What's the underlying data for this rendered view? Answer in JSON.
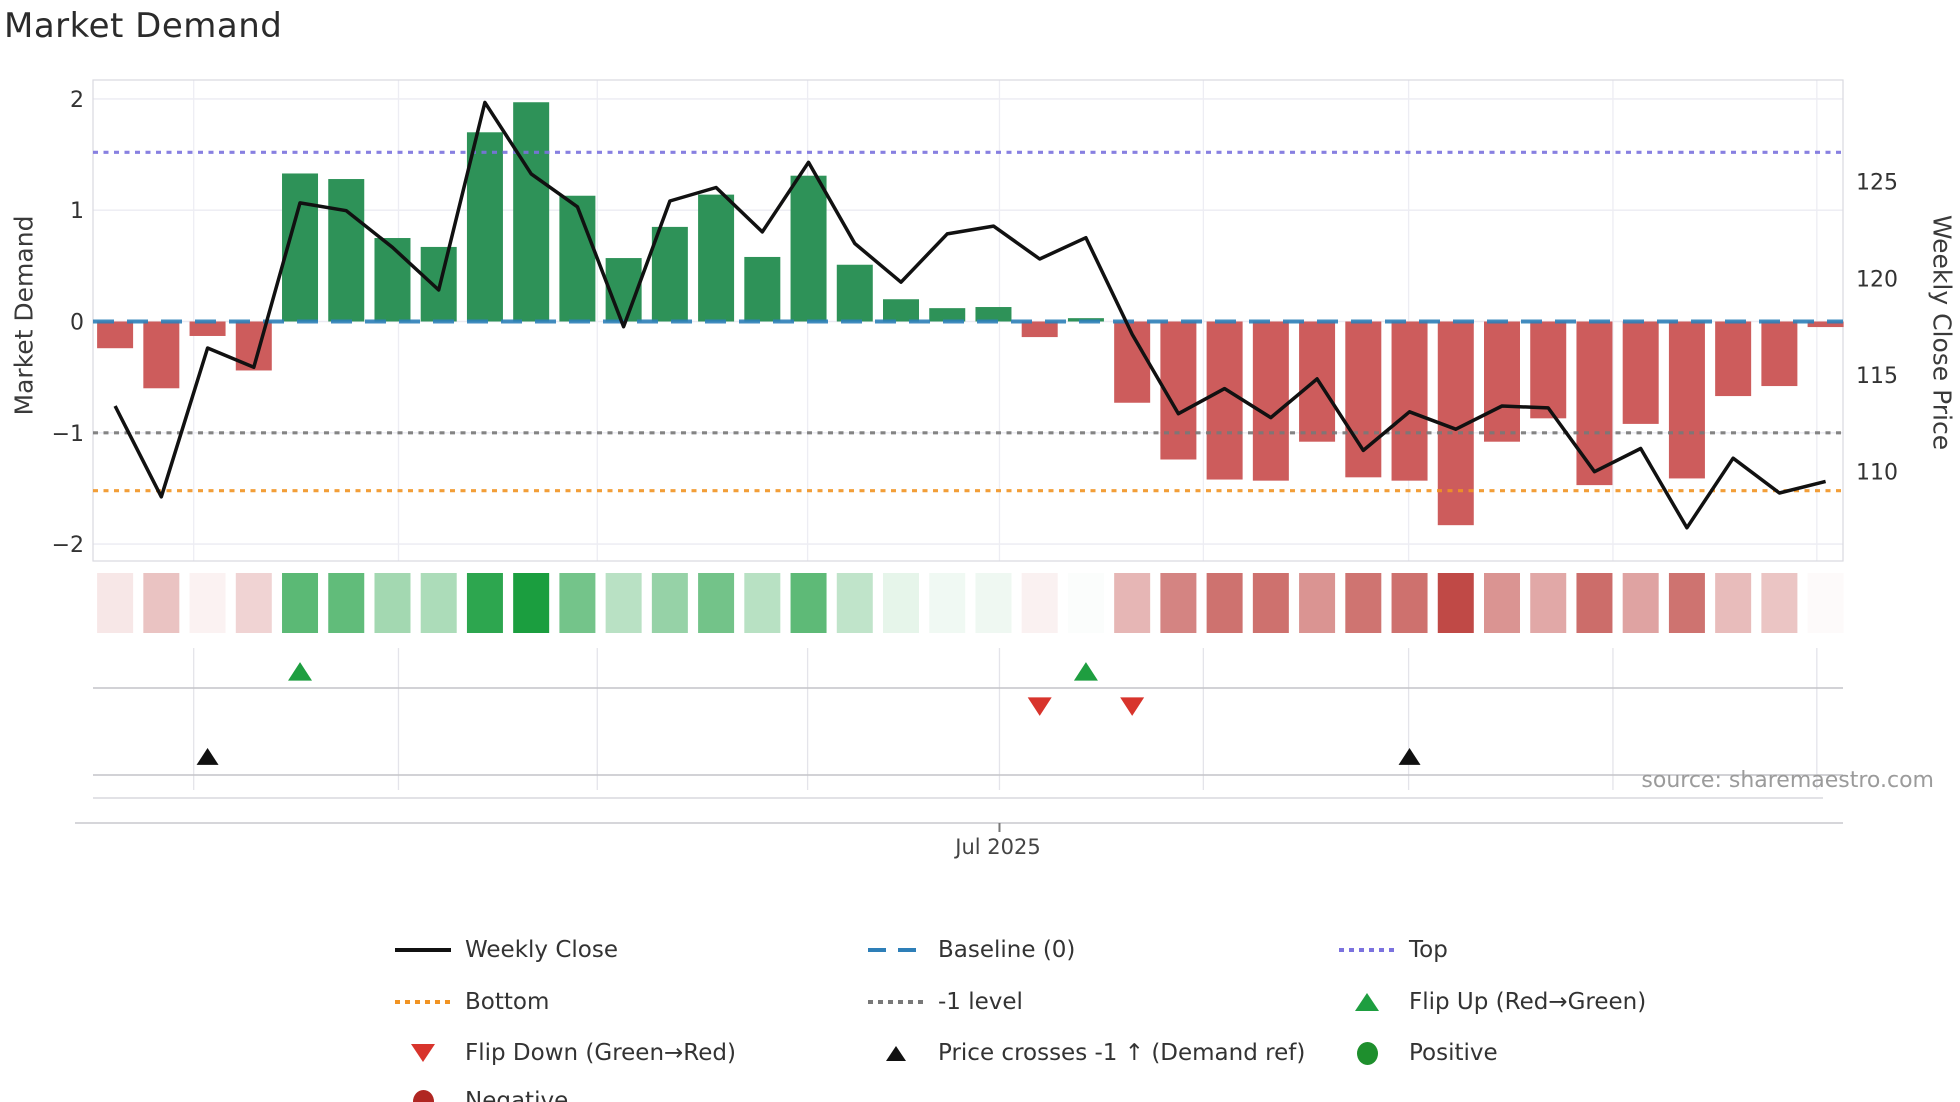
{
  "title": "Market Demand",
  "source": "source: sharemaestro.com",
  "chart_data": {
    "type": "bar+line+heatmap",
    "title": "Market Demand",
    "ylabel_left": "Market Demand",
    "ylabel_right": "Weekly Close Price",
    "x_tick_label": "Jul 2025",
    "n_weeks": 38,
    "demand": [
      -0.24,
      -0.6,
      -0.13,
      -0.44,
      1.33,
      1.28,
      0.75,
      0.67,
      1.7,
      1.97,
      1.13,
      0.57,
      0.85,
      1.14,
      0.58,
      1.31,
      0.51,
      0.2,
      0.12,
      0.13,
      -0.14,
      0.03,
      -0.73,
      -1.24,
      -1.42,
      -1.43,
      -1.08,
      -1.4,
      -1.43,
      -1.83,
      -1.08,
      -0.87,
      -1.47,
      -0.92,
      -1.41,
      -0.67,
      -0.58,
      -0.05
    ],
    "weekly_close": [
      113.4,
      108.7,
      116.4,
      115.4,
      123.9,
      123.5,
      121.6,
      119.4,
      129.1,
      125.4,
      123.7,
      117.5,
      124.0,
      124.7,
      122.4,
      126.0,
      121.8,
      119.8,
      122.3,
      122.7,
      121.0,
      122.1,
      117.1,
      113.0,
      114.3,
      112.8,
      114.8,
      111.1,
      113.1,
      112.2,
      113.4,
      113.3,
      110.0,
      111.2,
      107.1,
      110.7,
      108.9,
      109.5
    ],
    "ref_levels": {
      "baseline": 0,
      "top": 1.52,
      "bottom": -1.52,
      "minus_one": -1
    },
    "ylim_left": [
      -2.15,
      2.17
    ],
    "yticks_left": [
      "2",
      "1",
      "0",
      "−1",
      "−2"
    ],
    "ytick_values_left": [
      2,
      1,
      0,
      -1,
      -2
    ],
    "yticks_right": [
      "125",
      "120",
      "115",
      "110"
    ],
    "ytick_values_right": [
      125,
      120,
      115,
      110
    ],
    "month_boundary_weeks": [
      1.7,
      6.13,
      10.43,
      14.98,
      19.13,
      23.54,
      27.98,
      32.4,
      36.81
    ],
    "labeled_month_index": 4,
    "markers": {
      "flip_up_weeks": [
        5,
        22
      ],
      "flip_down_weeks": [
        21,
        23
      ],
      "price_cross_up_weeks": [
        3,
        29
      ]
    },
    "legend": {
      "weekly_close": "Weekly Close",
      "baseline": "Baseline (0)",
      "top": "Top",
      "bottom": "Bottom",
      "minus_one": "-1 level",
      "flip_up": "Flip Up (Red→Green)",
      "flip_down": "Flip Down (Green→Red)",
      "price_cross": "Price crosses -1 ↑ (Demand ref)",
      "positive": "Positive",
      "negative": "Negative"
    },
    "colors": {
      "bar_pos": "#2e9258",
      "bar_neg": "#cd5c5c",
      "line": "#111111",
      "baseline": "#2e7fb8",
      "top": "#7b72de",
      "bottom": "#f19322",
      "minus_one": "#787878",
      "flip_up": "#1e9e40",
      "flip_down": "#d8342c",
      "positive": "#1e8f2d",
      "negative": "#b02622",
      "price_cross": "#111111",
      "heat_pos": "#1b9e3f",
      "heat_neg": "#bf4744"
    }
  }
}
